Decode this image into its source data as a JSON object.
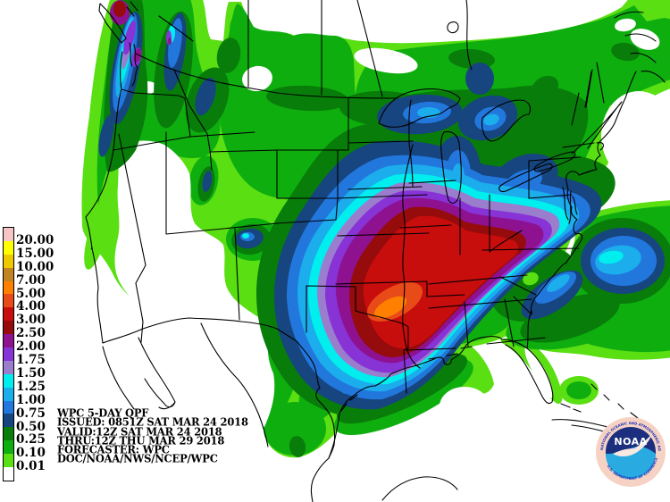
{
  "info_block": {
    "lines": [
      "WPC 5-DAY QPF",
      "ISSUED: 0851Z SAT MAR 24 2018",
      "VALID:12Z SAT MAR 24 2018",
      "THRU:12Z THU MAR 29 2018",
      "FORECASTER: WPC",
      "DOC/NOAA/NWS/NCEP/WPC"
    ]
  },
  "legend": {
    "levels": [
      {
        "label": "20.00",
        "color": "#f6c5c5"
      },
      {
        "label": "15.00",
        "color": "#ffff00"
      },
      {
        "label": "10.00",
        "color": "#eec900"
      },
      {
        "label": "7.00",
        "color": "#c08520"
      },
      {
        "label": "5.00",
        "color": "#ff8000"
      },
      {
        "label": "4.00",
        "color": "#e84b18"
      },
      {
        "label": "3.00",
        "color": "#c80d0d"
      },
      {
        "label": "2.50",
        "color": "#960b0b"
      },
      {
        "label": "2.00",
        "color": "#8e1190"
      },
      {
        "label": "1.75",
        "color": "#8733d6"
      },
      {
        "label": "1.50",
        "color": "#9a7dcd"
      },
      {
        "label": "1.25",
        "color": "#00eeee"
      },
      {
        "label": "1.00",
        "color": "#1badec"
      },
      {
        "label": "0.75",
        "color": "#2277dd"
      },
      {
        "label": "0.50",
        "color": "#16457f"
      },
      {
        "label": "0.25",
        "color": "#087d0a"
      },
      {
        "label": "0.10",
        "color": "#0fae0f"
      },
      {
        "label": "0.01",
        "color": "#59df12"
      },
      {
        "label": "",
        "color": "#ffffff"
      }
    ]
  },
  "logo": {
    "text": "NOAA",
    "ring_text_top": "NATIONAL OCEANIC AND ATMOSPHERIC ADMINISTRATION",
    "ring_text_bottom": "U.S. DEPARTMENT OF COMMERCE",
    "colors": {
      "outer": "#f5d2c4",
      "ring_text": "#2233bb",
      "dark": "#1b2f7e",
      "light": "#29aae1",
      "bird": "#f8e8e0"
    }
  }
}
